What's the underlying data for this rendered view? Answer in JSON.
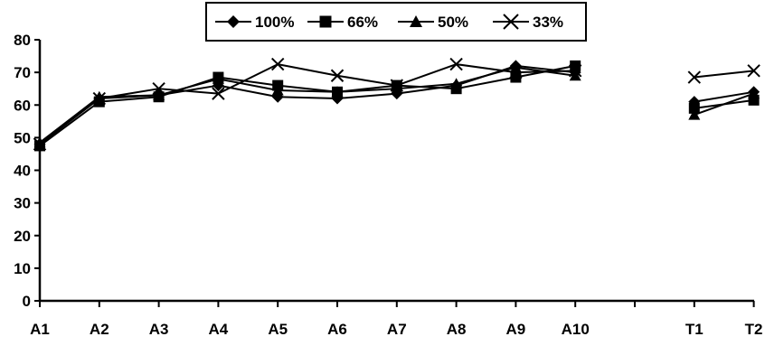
{
  "chart_data": {
    "type": "line",
    "title": "",
    "xlabel": "",
    "ylabel": "",
    "categories": [
      "A1",
      "A2",
      "A3",
      "A4",
      "A5",
      "A6",
      "A7",
      "A8",
      "A9",
      "A10",
      "",
      "T1",
      "T2"
    ],
    "ylim": [
      0,
      80
    ],
    "yticks": [
      0,
      10,
      20,
      30,
      40,
      50,
      60,
      70,
      80
    ],
    "grid": false,
    "legend_position": "top-center",
    "series": [
      {
        "name": "100%",
        "marker": "diamond",
        "values": [
          48,
          62,
          63,
          66,
          62.5,
          62,
          63.5,
          66,
          72,
          70,
          null,
          61,
          64
        ]
      },
      {
        "name": "66%",
        "marker": "square",
        "values": [
          47.5,
          61,
          62.5,
          68.5,
          66,
          64,
          66,
          65,
          68.5,
          72,
          null,
          59,
          61.5
        ]
      },
      {
        "name": "50%",
        "marker": "triangle",
        "values": [
          48.5,
          62.5,
          63,
          68,
          64.5,
          64,
          65,
          66.5,
          71.5,
          69,
          null,
          57,
          63.5
        ]
      },
      {
        "name": "33%",
        "marker": "x",
        "values": [
          48,
          62,
          65,
          63.5,
          72.5,
          69,
          66,
          72.5,
          70,
          70.5,
          null,
          68.5,
          70.5
        ]
      }
    ]
  }
}
